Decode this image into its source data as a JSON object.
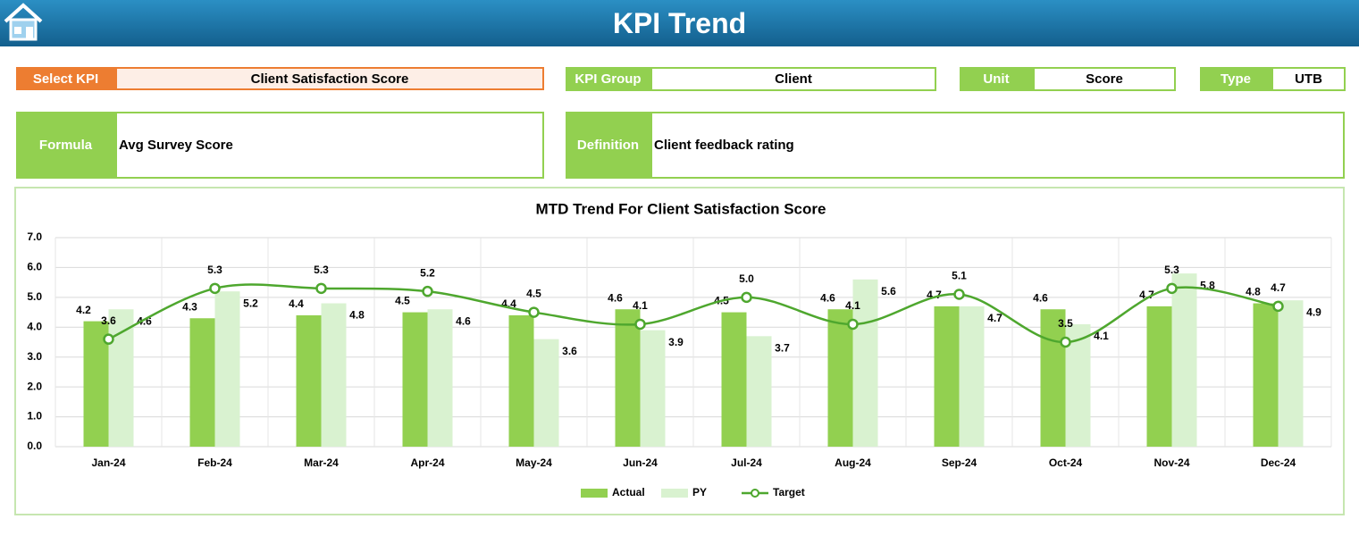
{
  "header": {
    "title": "KPI Trend"
  },
  "kpi_fields": [
    {
      "label": "Select KPI",
      "value": "Client Satisfaction Score"
    },
    {
      "label": "KPI Group",
      "value": "Client"
    },
    {
      "label": "Unit",
      "value": "Score"
    },
    {
      "label": "Type",
      "value": "UTB"
    }
  ],
  "details": [
    {
      "label": "Formula",
      "value": "Avg Survey Score"
    },
    {
      "label": "Definition",
      "value": "Client feedback rating"
    }
  ],
  "chart_data": {
    "type": "bar",
    "title": "MTD Trend For Client Satisfaction Score",
    "categories": [
      "Jan-24",
      "Feb-24",
      "Mar-24",
      "Apr-24",
      "May-24",
      "Jun-24",
      "Jul-24",
      "Aug-24",
      "Sep-24",
      "Oct-24",
      "Nov-24",
      "Dec-24"
    ],
    "series": [
      {
        "name": "Actual",
        "type": "bar",
        "color": "#92d050",
        "values": [
          4.2,
          4.3,
          4.4,
          4.5,
          4.4,
          4.6,
          4.5,
          4.6,
          4.7,
          4.6,
          4.7,
          4.8
        ]
      },
      {
        "name": "PY",
        "type": "bar",
        "color": "#d9f2d0",
        "values": [
          4.6,
          5.2,
          4.8,
          4.6,
          3.6,
          3.9,
          3.7,
          5.6,
          4.7,
          4.1,
          5.8,
          4.9
        ]
      },
      {
        "name": "Target",
        "type": "line",
        "color": "#4ea72e",
        "values": [
          3.6,
          5.3,
          5.3,
          5.2,
          4.5,
          4.1,
          5.0,
          4.1,
          5.1,
          3.5,
          5.3,
          4.7
        ],
        "value_labels": [
          "3.6",
          "5.3",
          "5.3",
          "5.2",
          "4.5",
          "4.1",
          "5.0",
          "4.1",
          "5.1",
          "3.5",
          "5.3",
          "4.7"
        ]
      }
    ],
    "ylim": [
      0,
      7
    ],
    "yticks": [
      {
        "value": 0,
        "label": "0.0"
      },
      {
        "value": 1,
        "label": "1.0"
      },
      {
        "value": 2,
        "label": "2.0"
      },
      {
        "value": 3,
        "label": "3.0"
      },
      {
        "value": 4,
        "label": "4.0"
      },
      {
        "value": 5,
        "label": "5.0"
      },
      {
        "value": 6,
        "label": "6.0"
      },
      {
        "value": 7,
        "label": "7.0"
      }
    ],
    "grid": true,
    "legend": "bottom"
  }
}
